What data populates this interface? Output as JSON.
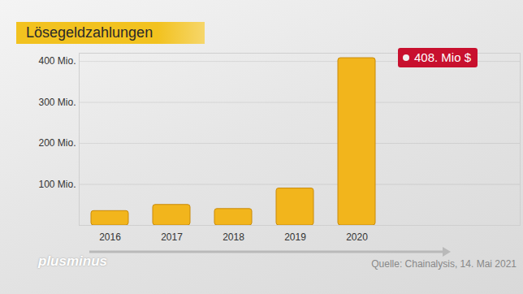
{
  "chart_data": {
    "type": "bar",
    "title": "Lösegeldzahlungen",
    "categories": [
      "2016",
      "2017",
      "2018",
      "2019",
      "2020"
    ],
    "values": [
      35,
      50,
      40,
      90,
      408
    ],
    "color": "#f2b51c",
    "ylim": [
      0,
      420
    ],
    "yticks": [
      {
        "value": 100,
        "label": "100 Mio."
      },
      {
        "value": 200,
        "label": "200 Mio."
      },
      {
        "value": 300,
        "label": "300 Mio."
      },
      {
        "value": 400,
        "label": "400 Mio."
      }
    ],
    "grid": true,
    "annotations": [
      {
        "x": "2020",
        "y": 408,
        "text": "408. Mio $"
      }
    ],
    "source": "Quelle: Chainalysis, 14. Mai 2021",
    "logo": "plusminus"
  }
}
